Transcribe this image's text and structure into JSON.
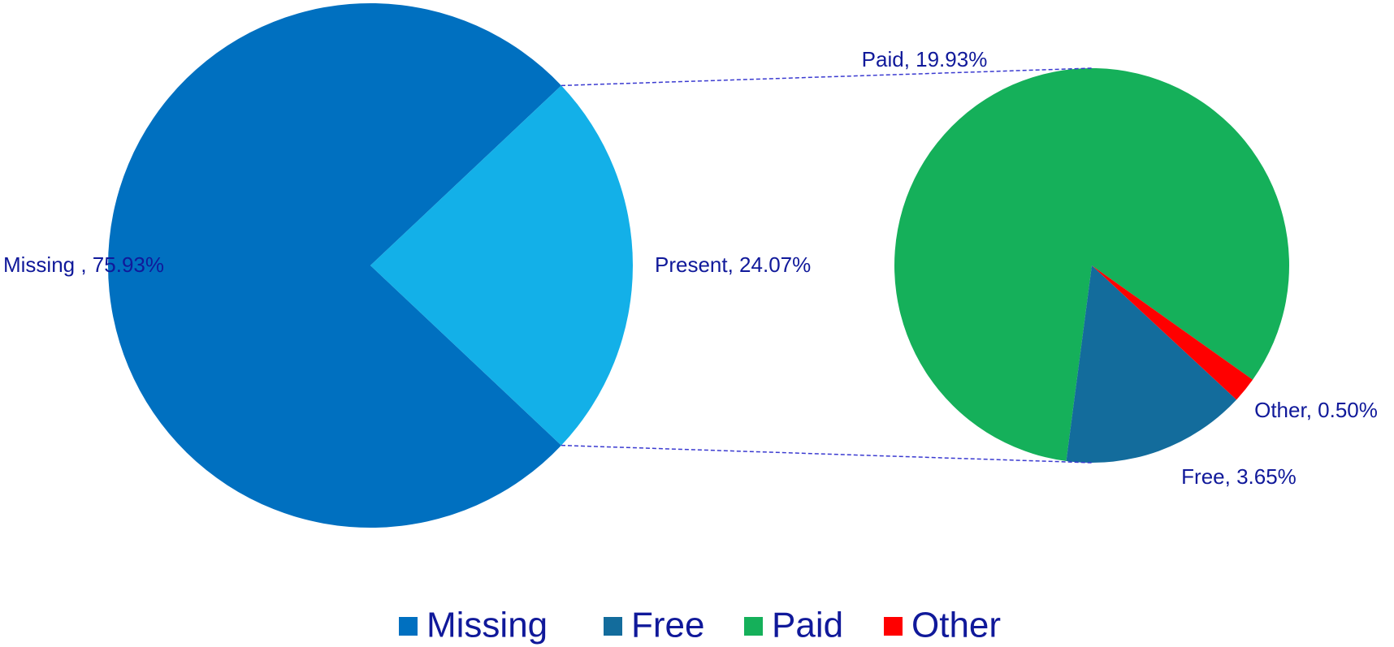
{
  "chart_data": {
    "type": "pie-of-pie",
    "values": [
      75.93,
      24.07
    ],
    "value_labels": [
      "Missing , 75.93%",
      "Present, 24.07%"
    ],
    "colors": [
      "#0070c0",
      "#13b0e8"
    ],
    "secondary": {
      "values": [
        19.93,
        3.65,
        0.5
      ],
      "value_labels": [
        "Paid, 19.93%",
        "Free, 3.65%",
        "Other, 0.50%"
      ],
      "colors": [
        "#15b05a",
        "#136c9c",
        "#ff0000"
      ]
    },
    "legend": [
      {
        "name": "Missing",
        "color": "#0070c0"
      },
      {
        "name": "Free",
        "color": "#136c9c"
      },
      {
        "name": "Paid",
        "color": "#15b05a"
      },
      {
        "name": "Other",
        "color": "#ff0000"
      }
    ]
  }
}
